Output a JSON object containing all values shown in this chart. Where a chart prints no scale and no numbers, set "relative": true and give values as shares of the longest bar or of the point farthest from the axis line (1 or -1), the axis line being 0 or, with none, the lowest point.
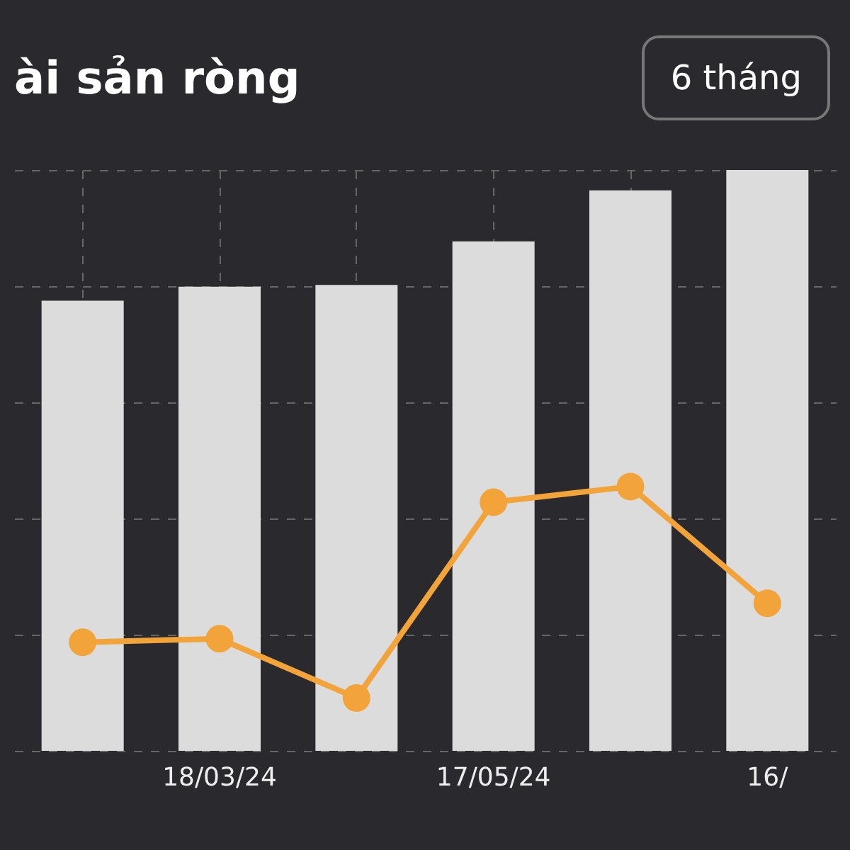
{
  "chart_data": {
    "type": "bar",
    "title": "ài sản ròng",
    "annotations": [
      "6 tháng"
    ],
    "relative": true,
    "grid": true,
    "categories": [
      null,
      "18/03/24",
      null,
      "17/05/24",
      null,
      "16/"
    ],
    "series": [
      {
        "color": "#dcdcdc",
        "values": [
          0.775,
          0.799,
          0.802,
          0.877,
          0.965,
          1
        ]
      },
      {
        "type": "line",
        "color": "#f2a33a",
        "marker": "circle",
        "values": [
          0.187,
          0.193,
          0.091,
          0.428,
          0.455,
          0.254
        ]
      }
    ]
  }
}
